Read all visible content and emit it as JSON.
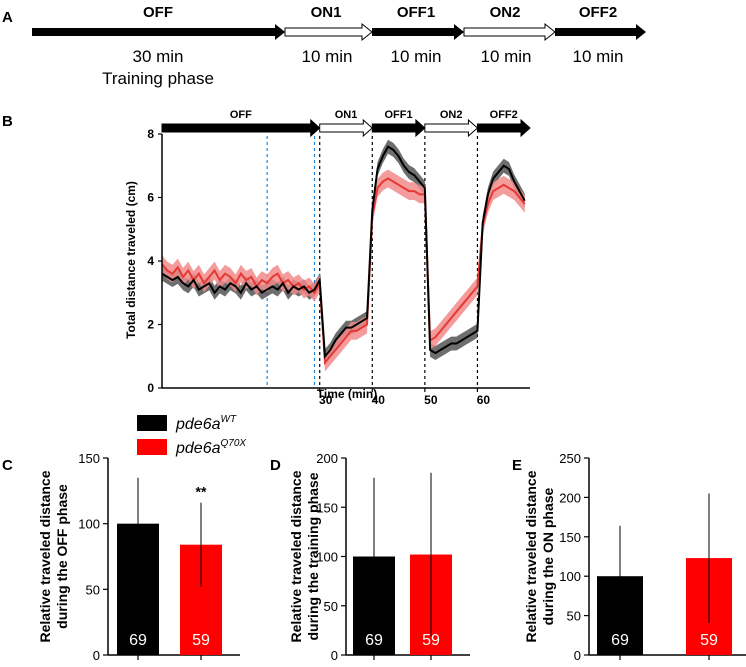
{
  "panels": {
    "A": "A",
    "B": "B",
    "C": "C",
    "D": "D",
    "E": "E"
  },
  "timeline_top": {
    "phases": [
      "OFF",
      "ON1",
      "OFF1",
      "ON2",
      "OFF2"
    ],
    "durations": [
      "30 min",
      "10 min",
      "10 min",
      "10 min",
      "10 min"
    ],
    "note": "Training phase"
  },
  "legend": {
    "wt": {
      "base": "pde6a",
      "sup": "WT",
      "color": "#000000"
    },
    "mut": {
      "base": "pde6a",
      "sup": "Q70X",
      "color": "#ff0000"
    }
  },
  "chart_data": [
    {
      "type": "line",
      "panel": "B",
      "xlabel": "Time (min)",
      "ylabel": "Total distance traveled (cm)",
      "xlim": [
        0,
        70
      ],
      "ylim": [
        0,
        8
      ],
      "yticks": [
        0,
        2,
        4,
        6,
        8
      ],
      "xticks": [
        30,
        40,
        50,
        60
      ],
      "phases": [
        "OFF",
        "ON1",
        "OFF1",
        "ON2",
        "OFF2"
      ],
      "phase_bounds": [
        0,
        30,
        40,
        50,
        60,
        70
      ],
      "dashed_lines": {
        "black": [
          30,
          40,
          50,
          60
        ],
        "blue": [
          20,
          29
        ]
      },
      "x": [
        0,
        1,
        2,
        3,
        4,
        5,
        6,
        7,
        8,
        9,
        10,
        11,
        12,
        13,
        14,
        15,
        16,
        17,
        18,
        19,
        20,
        21,
        22,
        23,
        24,
        25,
        26,
        27,
        28,
        29,
        30,
        31,
        32,
        33,
        34,
        35,
        36,
        37,
        38,
        39,
        40,
        41,
        42,
        43,
        44,
        45,
        46,
        47,
        48,
        49,
        50,
        51,
        52,
        53,
        54,
        55,
        56,
        57,
        58,
        59,
        60,
        61,
        62,
        63,
        64,
        65,
        66,
        67,
        68,
        69
      ],
      "series": [
        {
          "name": "pde6aWT",
          "color": "#000000",
          "band_color": "#555555",
          "values": [
            3.6,
            3.5,
            3.4,
            3.5,
            3.3,
            3.2,
            3.4,
            3.1,
            3.2,
            3.3,
            3.0,
            3.2,
            3.1,
            3.3,
            3.2,
            3.0,
            3.3,
            3.1,
            3.2,
            3.0,
            3.1,
            3.2,
            3.1,
            3.3,
            3.0,
            3.2,
            3.1,
            3.2,
            3.0,
            3.1,
            3.4,
            1.0,
            1.2,
            1.5,
            1.7,
            1.9,
            1.9,
            2.0,
            2.1,
            2.2,
            5.6,
            6.9,
            7.3,
            7.6,
            7.5,
            7.3,
            7.0,
            6.8,
            6.7,
            6.5,
            6.3,
            1.2,
            1.1,
            1.2,
            1.3,
            1.4,
            1.4,
            1.5,
            1.6,
            1.7,
            1.8,
            5.2,
            6.1,
            6.6,
            6.8,
            7.0,
            6.9,
            6.5,
            6.2,
            5.9
          ],
          "sem": 0.22
        },
        {
          "name": "pde6aQ70X",
          "color": "#e53935",
          "band_color": "#f28b8b",
          "values": [
            3.9,
            3.7,
            3.6,
            3.8,
            3.5,
            3.7,
            3.4,
            3.6,
            3.3,
            3.5,
            3.7,
            3.4,
            3.6,
            3.5,
            3.3,
            3.6,
            3.4,
            3.5,
            3.2,
            3.4,
            3.3,
            3.5,
            3.6,
            3.3,
            3.4,
            3.2,
            3.3,
            3.1,
            3.2,
            3.0,
            3.3,
            0.8,
            1.0,
            1.2,
            1.4,
            1.6,
            1.8,
            1.8,
            1.9,
            2.0,
            5.4,
            6.3,
            6.5,
            6.6,
            6.5,
            6.4,
            6.3,
            6.2,
            6.2,
            6.1,
            6.1,
            1.5,
            1.6,
            1.8,
            2.0,
            2.2,
            2.4,
            2.6,
            2.8,
            3.0,
            3.2,
            5.1,
            5.8,
            6.2,
            6.3,
            6.4,
            6.3,
            6.2,
            6.0,
            5.8
          ],
          "sem": 0.28
        }
      ]
    },
    {
      "type": "bar",
      "panel": "C",
      "ylabel": "Relative traveled distance during the OFF phase",
      "ylim": [
        0,
        150
      ],
      "yticks": [
        0,
        50,
        100,
        150
      ],
      "categories": [
        "pde6aWT",
        "pde6aQ70X"
      ],
      "values": [
        100,
        84
      ],
      "errors": [
        35,
        32
      ],
      "n": [
        "69",
        "59"
      ],
      "colors": [
        "#000000",
        "#ff0000"
      ],
      "significance": "**"
    },
    {
      "type": "bar",
      "panel": "D",
      "ylabel": "Relative traveled distance during the training phase",
      "ylim": [
        0,
        200
      ],
      "yticks": [
        0,
        50,
        100,
        150,
        200
      ],
      "categories": [
        "pde6aWT",
        "pde6aQ70X"
      ],
      "values": [
        100,
        102
      ],
      "errors": [
        80,
        83
      ],
      "n": [
        "69",
        "59"
      ],
      "colors": [
        "#000000",
        "#ff0000"
      ],
      "significance": ""
    },
    {
      "type": "bar",
      "panel": "E",
      "ylabel": "Relative traveled distance during the ON phase",
      "ylim": [
        0,
        250
      ],
      "yticks": [
        0,
        50,
        100,
        150,
        200,
        250
      ],
      "categories": [
        "pde6aWT",
        "pde6aQ70X"
      ],
      "values": [
        100,
        123
      ],
      "errors": [
        64,
        82
      ],
      "n": [
        "69",
        "59"
      ],
      "colors": [
        "#000000",
        "#ff0000"
      ],
      "significance": ""
    }
  ]
}
